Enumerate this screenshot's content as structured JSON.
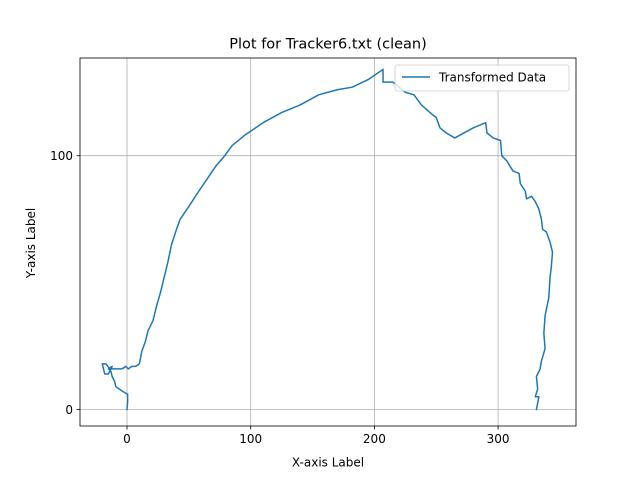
{
  "chart_data": {
    "type": "line",
    "title": "Plot for Tracker6.txt (clean)",
    "xlabel": "X-axis Label",
    "ylabel": "Y-axis Label",
    "xlim": [
      -38,
      363
    ],
    "ylim": [
      -6.5,
      138.5
    ],
    "xticks": [
      0,
      100,
      200,
      300
    ],
    "yticks": [
      0,
      100
    ],
    "grid": true,
    "legend_position": "upper right",
    "series": [
      {
        "name": "Transformed Data",
        "color": "#1f77b4",
        "points": [
          [
            0,
            0
          ],
          [
            0.5,
            3
          ],
          [
            0.5,
            6
          ],
          [
            -3,
            7
          ],
          [
            -6,
            8
          ],
          [
            -9,
            9
          ],
          [
            -10,
            11
          ],
          [
            -12,
            13
          ],
          [
            -13,
            15
          ],
          [
            -15,
            16
          ],
          [
            -12,
            17
          ],
          [
            -15,
            14
          ],
          [
            -18,
            14
          ],
          [
            -19,
            16
          ],
          [
            -20,
            18
          ],
          [
            -17,
            18
          ],
          [
            -14,
            16
          ],
          [
            -10,
            16
          ],
          [
            -7,
            16
          ],
          [
            -4,
            16
          ],
          [
            -1,
            17
          ],
          [
            1,
            16
          ],
          [
            4,
            17
          ],
          [
            7,
            17
          ],
          [
            10,
            18
          ],
          [
            12,
            23
          ],
          [
            15,
            27
          ],
          [
            17,
            31
          ],
          [
            21,
            35
          ],
          [
            24,
            41
          ],
          [
            27,
            46
          ],
          [
            30,
            52
          ],
          [
            33,
            58
          ],
          [
            36,
            65
          ],
          [
            40,
            71
          ],
          [
            43,
            75
          ],
          [
            50,
            80
          ],
          [
            58,
            86
          ],
          [
            65,
            91
          ],
          [
            72,
            96
          ],
          [
            79,
            100
          ],
          [
            85,
            104
          ],
          [
            95,
            108
          ],
          [
            110,
            113
          ],
          [
            125,
            117
          ],
          [
            140,
            120
          ],
          [
            155,
            124
          ],
          [
            170,
            126
          ],
          [
            182,
            127
          ],
          [
            195,
            130
          ],
          [
            207,
            134
          ],
          [
            207,
            129
          ],
          [
            215,
            129
          ],
          [
            225,
            125
          ],
          [
            232,
            124
          ],
          [
            238,
            120
          ],
          [
            245,
            117
          ],
          [
            250,
            115
          ],
          [
            253,
            111
          ],
          [
            258,
            109
          ],
          [
            265,
            107
          ],
          [
            280,
            111
          ],
          [
            290,
            113
          ],
          [
            291,
            109
          ],
          [
            296,
            107
          ],
          [
            302,
            106
          ],
          [
            303,
            100
          ],
          [
            307,
            98
          ],
          [
            312,
            94
          ],
          [
            317,
            93
          ],
          [
            318,
            89
          ],
          [
            322,
            86
          ],
          [
            323,
            83
          ],
          [
            327,
            84
          ],
          [
            330,
            82
          ],
          [
            333,
            79
          ],
          [
            335,
            75
          ],
          [
            336,
            71
          ],
          [
            339,
            70
          ],
          [
            342,
            66
          ],
          [
            344,
            62
          ],
          [
            343,
            56
          ],
          [
            342,
            52
          ],
          [
            341,
            44
          ],
          [
            338,
            37
          ],
          [
            337,
            30
          ],
          [
            338,
            24
          ],
          [
            335,
            19
          ],
          [
            334,
            16
          ],
          [
            331,
            13
          ],
          [
            332,
            8
          ],
          [
            330,
            5
          ],
          [
            333,
            5
          ],
          [
            331,
            0
          ]
        ]
      }
    ]
  }
}
